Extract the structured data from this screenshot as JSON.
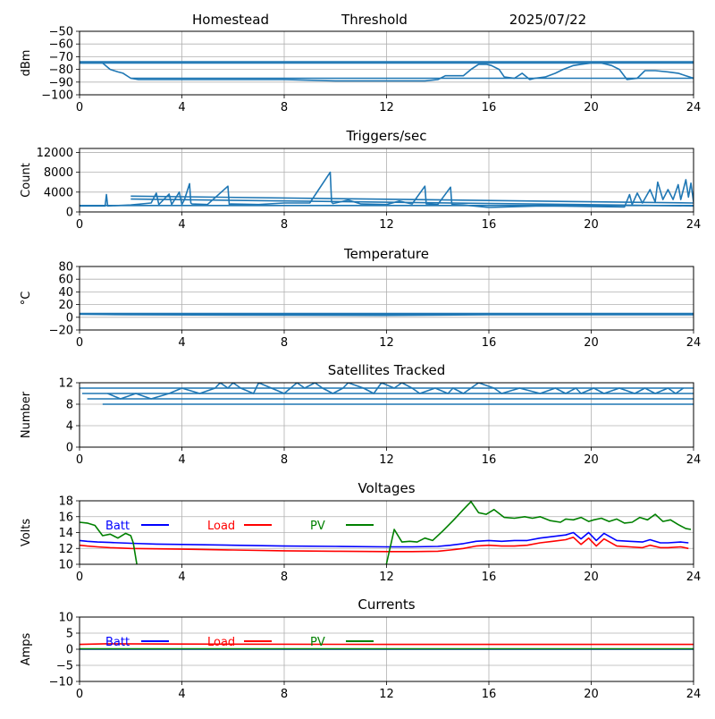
{
  "header": {
    "station": "Homestead",
    "mode": "Threshold",
    "date": "2025/07/22"
  },
  "chart_data": [
    {
      "type": "line",
      "title": "",
      "ylabel": "dBm",
      "xlim": [
        0,
        24
      ],
      "ylim": [
        -100,
        -50
      ],
      "xticks": [
        0,
        4,
        8,
        12,
        16,
        20,
        24
      ],
      "yticks": [
        -100,
        -90,
        -80,
        -70,
        -60,
        -50
      ],
      "grid": true,
      "series": [
        {
          "name": "",
          "color": "#1f77b4",
          "x": [
            0,
            0.9,
            1.2,
            1.5,
            1.7,
            2.0,
            2.3,
            4,
            6,
            8,
            10,
            12,
            13.5,
            14.0,
            14.3,
            15.0,
            15.3,
            15.6,
            15.9,
            16.1,
            16.4,
            16.6,
            17.0,
            17.3,
            17.6,
            17.8,
            18.2,
            18.6,
            18.9,
            19.3,
            19.6,
            20.0,
            20.4,
            20.8,
            21.1,
            21.4,
            21.8,
            22.1,
            22.5,
            23.0,
            23.4,
            23.7,
            24.0
          ],
          "y": [
            -75,
            -75,
            -80,
            -82,
            -83,
            -87,
            -88,
            -88,
            -88,
            -88,
            -89,
            -89,
            -89,
            -88,
            -85,
            -85,
            -80,
            -76,
            -76,
            -77,
            -80,
            -86,
            -87,
            -83,
            -88,
            -87,
            -86,
            -83,
            -80,
            -77,
            -76,
            -75,
            -75,
            -77,
            -80,
            -88,
            -87,
            -81,
            -81,
            -82,
            -83,
            -85,
            -87
          ]
        },
        {
          "name": "",
          "color": "#1f77b4",
          "x": [
            0,
            24
          ],
          "y": [
            -75,
            -75
          ]
        },
        {
          "name": "",
          "color": "#1f77b4",
          "x": [
            0,
            24
          ],
          "y": [
            -74,
            -74
          ]
        },
        {
          "name": "",
          "color": "#1f77b4",
          "x": [
            2,
            24
          ],
          "y": [
            -87,
            -87
          ]
        }
      ]
    },
    {
      "type": "line",
      "title": "Triggers/sec",
      "ylabel": "Count",
      "xlim": [
        0,
        24
      ],
      "ylim": [
        0,
        12800
      ],
      "xticks": [
        0,
        4,
        8,
        12,
        16,
        20,
        24
      ],
      "yticks": [
        0,
        4000,
        8000,
        12000
      ],
      "grid": true,
      "series": [
        {
          "name": "",
          "color": "#1f77b4",
          "x": [
            0,
            1.0,
            1.05,
            1.1,
            2.0,
            2.8,
            3.0,
            3.1,
            3.5,
            3.6,
            3.9,
            4.0,
            4.1,
            4.3,
            4.35,
            4.4,
            5.0,
            5.8,
            5.85,
            5.9,
            7.0,
            8.0,
            9.0,
            9.8,
            9.85,
            9.9,
            10.5,
            11.0,
            12.0,
            12.5,
            13.0,
            13.5,
            13.55,
            13.6,
            14.0,
            14.5,
            14.55,
            14.6,
            15.0,
            16.0,
            18.0,
            20.0,
            21.3,
            21.5,
            21.6,
            21.8,
            22.0,
            22.3,
            22.5,
            22.6,
            22.8,
            23.0,
            23.2,
            23.4,
            23.5,
            23.6,
            23.7,
            23.8,
            23.9,
            24.0
          ],
          "y": [
            1200,
            1200,
            3500,
            1200,
            1400,
            1800,
            3800,
            1500,
            3600,
            1500,
            4000,
            1500,
            2500,
            5700,
            1800,
            1600,
            1500,
            5200,
            1500,
            1600,
            1500,
            1800,
            1800,
            8000,
            2000,
            1700,
            2400,
            1600,
            1500,
            2200,
            1600,
            5200,
            1600,
            1600,
            1500,
            5000,
            1600,
            1500,
            1400,
            900,
            1200,
            1100,
            1000,
            3500,
            1500,
            3800,
            1800,
            4500,
            2000,
            6000,
            2500,
            4500,
            2500,
            5500,
            2500,
            4500,
            6500,
            3000,
            5800,
            2000
          ]
        },
        {
          "name": "",
          "color": "#1f77b4",
          "x": [
            2,
            24
          ],
          "y": [
            3200,
            1800
          ]
        },
        {
          "name": "",
          "color": "#1f77b4",
          "x": [
            2,
            24
          ],
          "y": [
            2600,
            1200
          ]
        },
        {
          "name": "",
          "color": "#1f77b4",
          "x": [
            0,
            24
          ],
          "y": [
            1300,
            1300
          ]
        }
      ]
    },
    {
      "type": "line",
      "title": "Temperature",
      "ylabel": "°C",
      "xlim": [
        0,
        24
      ],
      "ylim": [
        -20,
        80
      ],
      "xticks": [
        0,
        4,
        8,
        12,
        16,
        20,
        24
      ],
      "yticks": [
        -20,
        0,
        20,
        40,
        60,
        80
      ],
      "grid": true,
      "series": [
        {
          "name": "",
          "color": "#1f77b4",
          "x": [
            0,
            24
          ],
          "y": [
            6,
            6
          ]
        },
        {
          "name": "",
          "color": "#1f77b4",
          "x": [
            0,
            24
          ],
          "y": [
            5,
            5
          ]
        },
        {
          "name": "",
          "color": "#1f77b4",
          "x": [
            0,
            2,
            12,
            16,
            24
          ],
          "y": [
            5,
            4,
            3,
            4,
            4
          ]
        }
      ]
    },
    {
      "type": "line",
      "title": "Satellites Tracked",
      "ylabel": "Number",
      "xlim": [
        0,
        24
      ],
      "ylim": [
        0,
        12
      ],
      "xticks": [
        0,
        4,
        8,
        12,
        16,
        20,
        24
      ],
      "yticks": [
        0,
        4,
        8,
        12
      ],
      "grid": true,
      "series": [
        {
          "name": "",
          "color": "#1f77b4",
          "x": [
            0,
            24
          ],
          "y": [
            11,
            11
          ]
        },
        {
          "name": "",
          "color": "#1f77b4",
          "x": [
            0.1,
            24
          ],
          "y": [
            10,
            10
          ]
        },
        {
          "name": "",
          "color": "#1f77b4",
          "x": [
            0.3,
            24
          ],
          "y": [
            9,
            9
          ]
        },
        {
          "name": "",
          "color": "#1f77b4",
          "x": [
            0.9,
            24
          ],
          "y": [
            8,
            8
          ]
        },
        {
          "name": "",
          "color": "#1f77b4",
          "x": [
            1.1,
            1.6,
            2.2,
            2.8,
            3.5,
            4.0,
            4.7,
            5.3,
            5.5,
            5.8,
            6.0,
            6.3,
            6.8,
            7.0,
            7.5,
            8.0,
            8.5,
            8.8,
            9.2,
            9.5,
            9.9,
            10.3,
            10.5,
            11.1,
            11.5,
            11.8,
            12.3,
            12.6,
            13.0,
            13.3,
            13.9,
            14.4,
            14.6,
            15.0,
            15.6,
            16.2,
            16.5,
            17.2,
            18.0,
            18.6,
            19.0,
            19.4,
            19.6,
            20.1,
            20.5,
            21.1,
            21.7,
            22.1,
            22.5,
            23.0,
            23.3,
            23.6
          ],
          "y": [
            10,
            9,
            10,
            9,
            10,
            11,
            10,
            11,
            12,
            11,
            12,
            11,
            10,
            12,
            11,
            10,
            12,
            11,
            12,
            11,
            10,
            11,
            12,
            11,
            10,
            12,
            11,
            12,
            11,
            10,
            11,
            10,
            11,
            10,
            12,
            11,
            10,
            11,
            10,
            11,
            10,
            11,
            10,
            11,
            10,
            11,
            10,
            11,
            10,
            11,
            10,
            11
          ]
        }
      ]
    },
    {
      "type": "line",
      "title": "Voltages",
      "ylabel": "Volts",
      "xlim": [
        0,
        24
      ],
      "ylim": [
        10,
        18
      ],
      "xticks": [
        0,
        4,
        8,
        12,
        16,
        20,
        24
      ],
      "yticks": [
        10,
        12,
        14,
        16,
        18
      ],
      "grid": true,
      "legend": "top",
      "series": [
        {
          "name": "Batt",
          "color": "#0000ff",
          "x": [
            0,
            0.3,
            0.7,
            1.2,
            2,
            3,
            4,
            6,
            8,
            10,
            12,
            13,
            14,
            14.5,
            15,
            15.5,
            16,
            16.5,
            17,
            17.5,
            18,
            18.5,
            19,
            19.3,
            19.6,
            19.9,
            20.2,
            20.5,
            21,
            21.5,
            22,
            22.3,
            22.7,
            23,
            23.5,
            23.8
          ],
          "y": [
            13.0,
            12.9,
            12.8,
            12.75,
            12.65,
            12.55,
            12.5,
            12.4,
            12.3,
            12.25,
            12.2,
            12.2,
            12.25,
            12.4,
            12.6,
            12.9,
            13.0,
            12.9,
            13.0,
            13.0,
            13.3,
            13.5,
            13.7,
            14.0,
            13.2,
            14.0,
            13.0,
            13.9,
            13.0,
            12.9,
            12.8,
            13.1,
            12.7,
            12.7,
            12.8,
            12.7
          ]
        },
        {
          "name": "Load",
          "color": "#ff0000",
          "x": [
            0,
            0.3,
            0.7,
            1.2,
            2,
            3,
            4,
            6,
            8,
            10,
            12,
            13,
            14,
            14.5,
            15,
            15.5,
            16,
            16.5,
            17,
            17.5,
            18,
            18.5,
            19,
            19.3,
            19.6,
            19.9,
            20.2,
            20.5,
            21,
            21.5,
            22,
            22.3,
            22.7,
            23,
            23.5,
            23.8
          ],
          "y": [
            12.4,
            12.3,
            12.2,
            12.1,
            12.0,
            11.95,
            11.9,
            11.8,
            11.7,
            11.65,
            11.6,
            11.6,
            11.65,
            11.8,
            12.0,
            12.3,
            12.4,
            12.3,
            12.3,
            12.4,
            12.7,
            12.9,
            13.1,
            13.4,
            12.5,
            13.3,
            12.3,
            13.2,
            12.3,
            12.2,
            12.1,
            12.4,
            12.1,
            12.1,
            12.2,
            12.0
          ]
        },
        {
          "name": "PV",
          "color": "#008000",
          "x": [
            0,
            0.3,
            0.6,
            0.9,
            1.2,
            1.5,
            1.8,
            2.0,
            2.1,
            2.25,
            2.3,
            11.95,
            12.0,
            12.3,
            12.6,
            12.9,
            13.2,
            13.5,
            13.8,
            14.2,
            14.6,
            15.0,
            15.3,
            15.6,
            15.9,
            16.2,
            16.6,
            17.0,
            17.4,
            17.7,
            18.0,
            18.4,
            18.8,
            19.0,
            19.3,
            19.6,
            19.9,
            20.1,
            20.4,
            20.7,
            21.0,
            21.3,
            21.6,
            21.9,
            22.2,
            22.5,
            22.8,
            23.1,
            23.4,
            23.7,
            23.9
          ],
          "y": [
            15.3,
            15.2,
            14.9,
            13.6,
            13.8,
            13.3,
            13.9,
            13.6,
            12.7,
            9.8,
            9.5,
            9.5,
            10.1,
            14.4,
            12.8,
            12.9,
            12.8,
            13.3,
            13.0,
            14.2,
            15.5,
            16.9,
            17.9,
            16.5,
            16.3,
            16.9,
            15.9,
            15.8,
            16.0,
            15.8,
            16.0,
            15.5,
            15.3,
            15.7,
            15.6,
            15.9,
            15.4,
            15.6,
            15.8,
            15.4,
            15.7,
            15.2,
            15.3,
            15.9,
            15.6,
            16.3,
            15.4,
            15.6,
            15.0,
            14.5,
            14.4
          ]
        }
      ]
    },
    {
      "type": "line",
      "title": "Currents",
      "ylabel": "Amps",
      "xlim": [
        0,
        24
      ],
      "ylim": [
        -10,
        10
      ],
      "xticks": [
        0,
        4,
        8,
        12,
        16,
        20,
        24
      ],
      "yticks": [
        -10,
        -5,
        0,
        5,
        10
      ],
      "grid": true,
      "legend": "top",
      "series": [
        {
          "name": "Batt",
          "color": "#0000ff",
          "x": [
            0,
            24
          ],
          "y": [
            0.0,
            0.0
          ]
        },
        {
          "name": "Load",
          "color": "#ff0000",
          "x": [
            0,
            1,
            4,
            12,
            24
          ],
          "y": [
            1.5,
            1.7,
            1.6,
            1.5,
            1.5
          ]
        },
        {
          "name": "PV",
          "color": "#008000",
          "x": [
            0,
            24
          ],
          "y": [
            0.1,
            0.1
          ]
        }
      ]
    }
  ]
}
